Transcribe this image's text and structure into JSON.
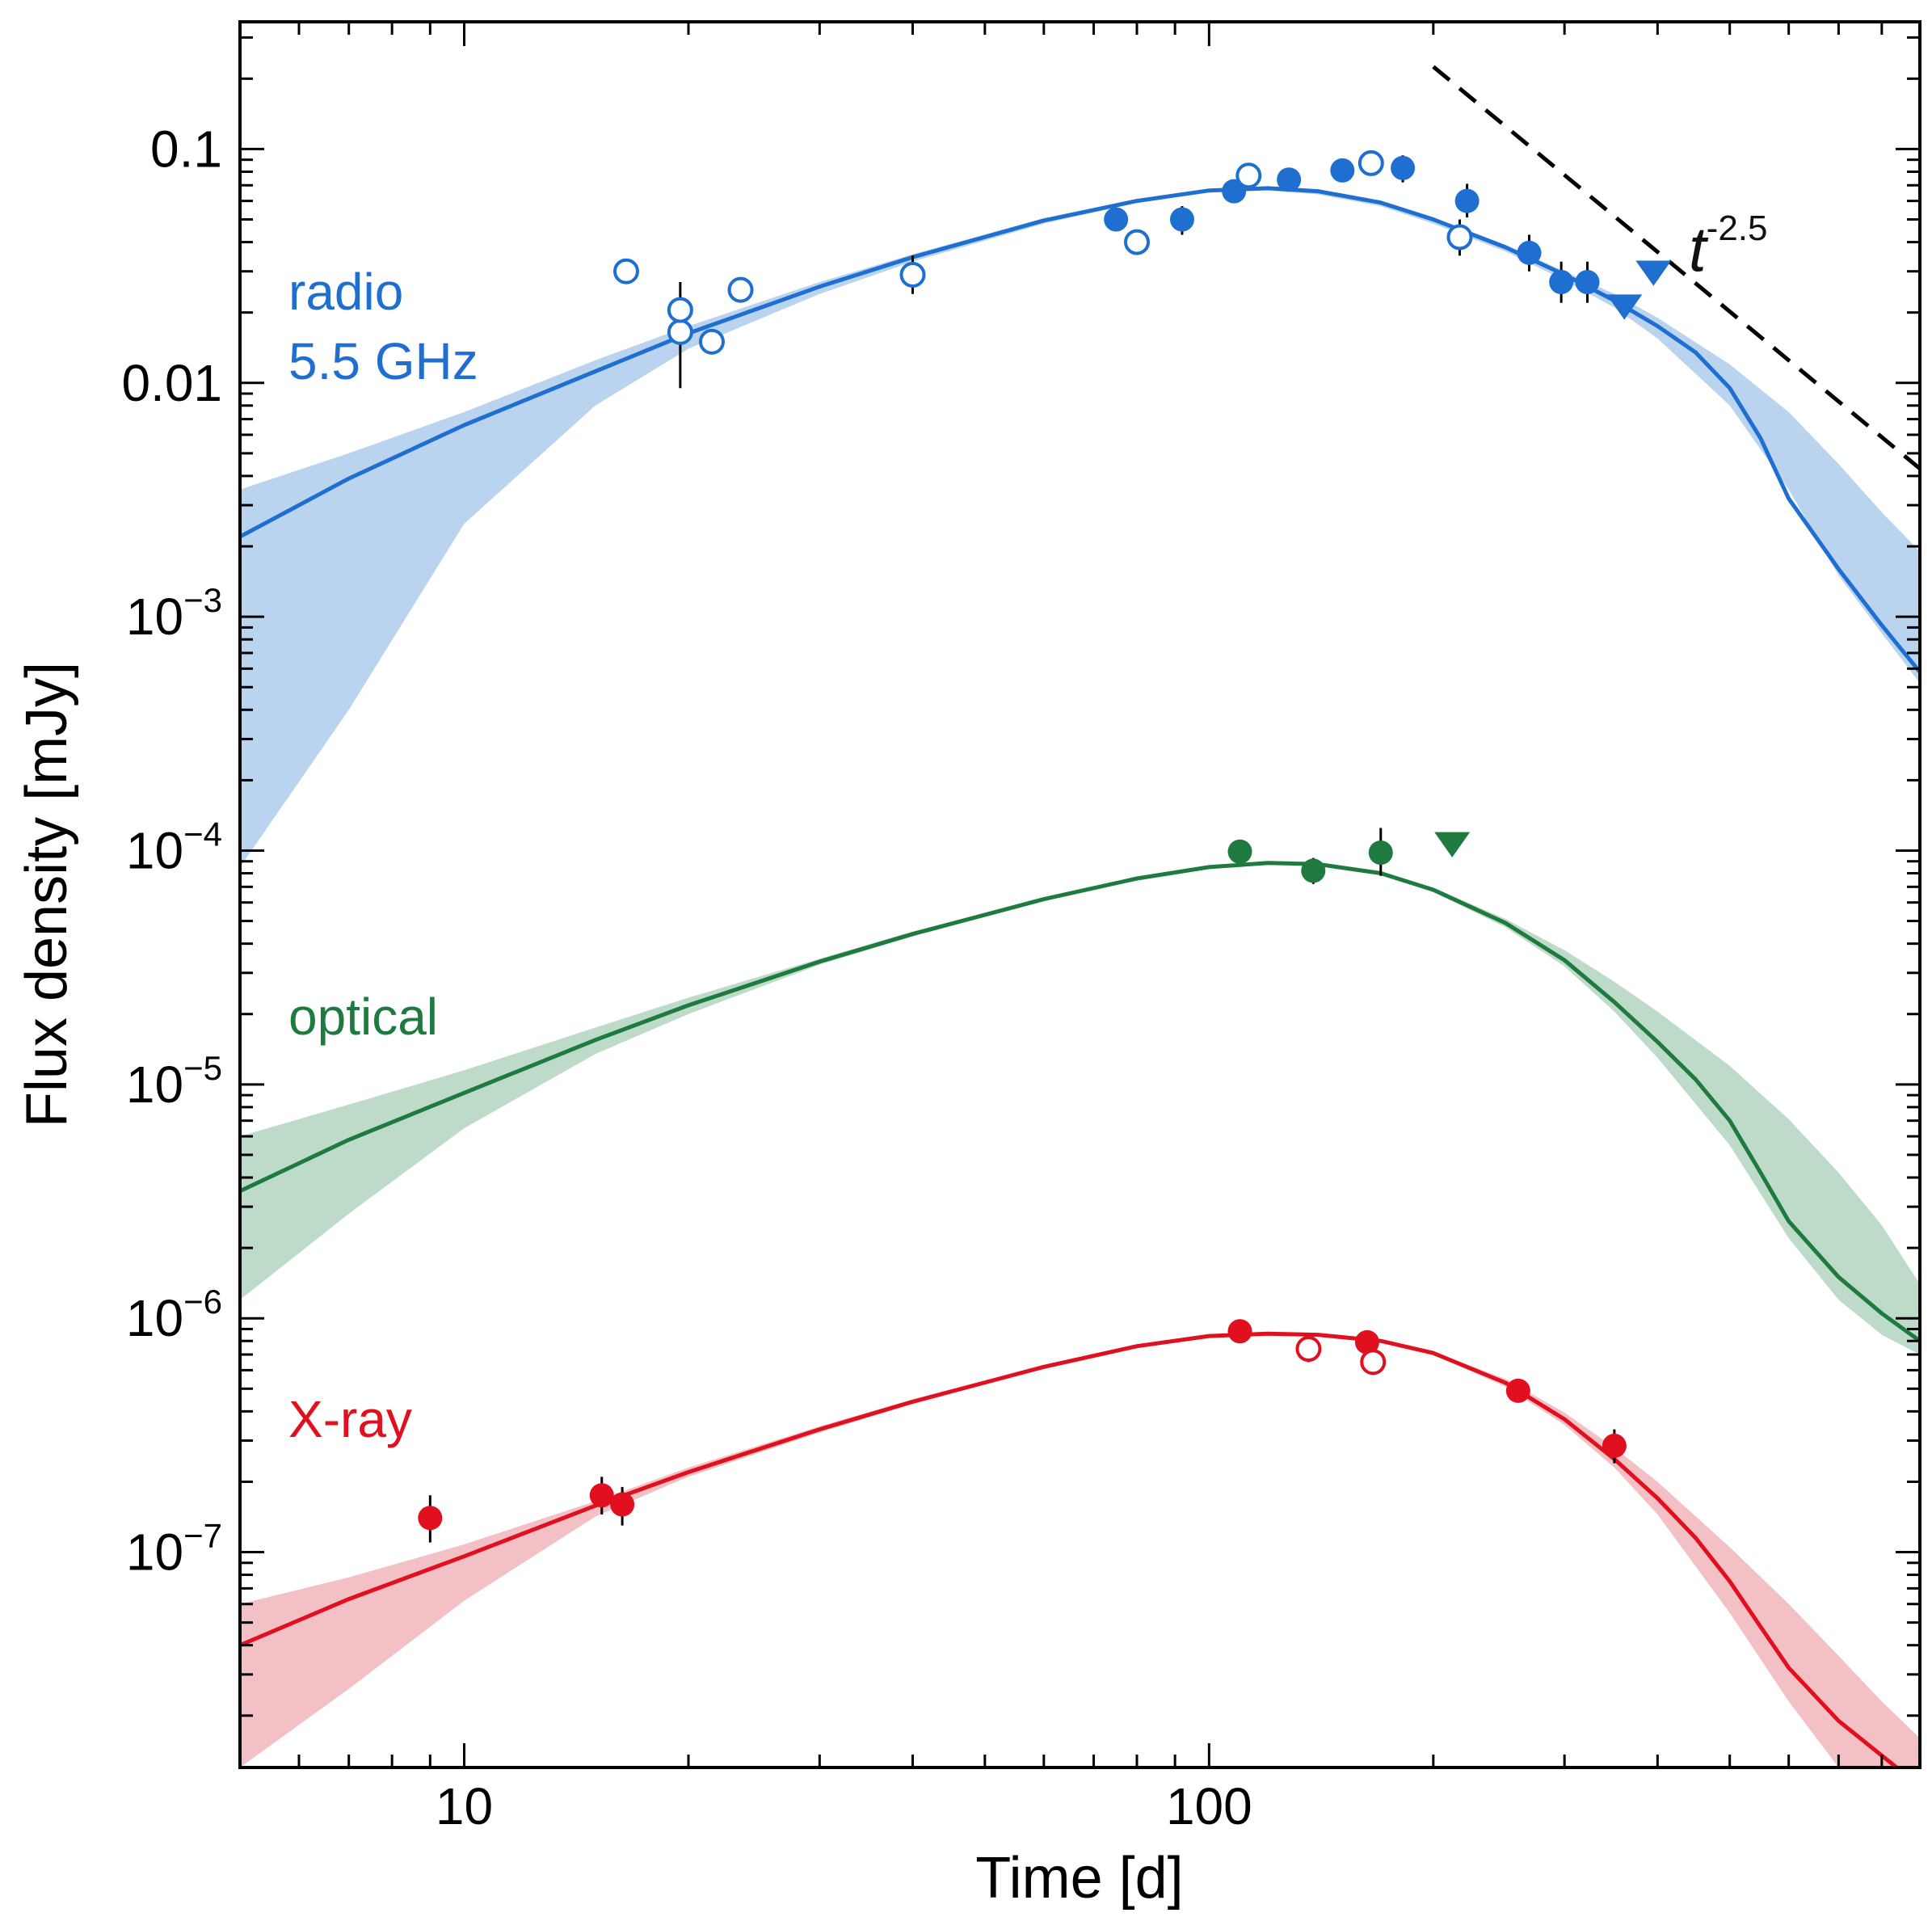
{
  "chart_data": {
    "type": "scatter",
    "title": "",
    "xlabel": "Time [d]",
    "ylabel": "Flux density [mJy]",
    "x_scale": "log",
    "y_scale": "log",
    "xlim": [
      5,
      900
    ],
    "ylim": [
      1.2e-08,
      0.35
    ],
    "grid": false,
    "x_ticks": [
      {
        "value": 10,
        "label": "10"
      },
      {
        "value": 100,
        "label": "100"
      }
    ],
    "y_ticks": [
      {
        "value": 0.1,
        "base": "0.1",
        "exp": ""
      },
      {
        "value": 0.01,
        "base": "0.01",
        "exp": ""
      },
      {
        "value": 0.001,
        "base": "10",
        "exp": "−3"
      },
      {
        "value": 0.0001,
        "base": "10",
        "exp": "−4"
      },
      {
        "value": 1e-05,
        "base": "10",
        "exp": "−5"
      },
      {
        "value": 1e-06,
        "base": "10",
        "exp": "−6"
      },
      {
        "value": 1e-07,
        "base": "10",
        "exp": "−7"
      }
    ],
    "powerlaw": {
      "base": "t",
      "exponent": "-2.5",
      "x": [
        200,
        900
      ],
      "y": [
        0.225,
        0.0043
      ]
    },
    "series": [
      {
        "name": "radio",
        "name_line2": "5.5 GHz",
        "color": "#1f6fd1",
        "band_color": "#bad3ef",
        "model": {
          "x": [
            5,
            7,
            10,
            15,
            20,
            30,
            40,
            60,
            80,
            100,
            120,
            140,
            170,
            200,
            250,
            300,
            350,
            400,
            450,
            500,
            550,
            600,
            700,
            800,
            900
          ],
          "y": [
            0.0022,
            0.0039,
            0.0066,
            0.0112,
            0.0163,
            0.0258,
            0.0345,
            0.0495,
            0.06,
            0.0665,
            0.068,
            0.066,
            0.059,
            0.05,
            0.038,
            0.029,
            0.0225,
            0.0175,
            0.0135,
            0.0095,
            0.0058,
            0.0032,
            0.0016,
            0.00092,
            0.00058
          ]
        },
        "band": {
          "x": [
            5,
            7,
            10,
            15,
            20,
            30,
            40,
            60,
            80,
            100,
            120,
            140,
            170,
            200,
            250,
            300,
            350,
            400,
            500,
            600,
            700,
            800,
            900
          ],
          "upper": [
            0.0035,
            0.005,
            0.0075,
            0.0125,
            0.0175,
            0.027,
            0.0355,
            0.0505,
            0.061,
            0.0675,
            0.069,
            0.067,
            0.06,
            0.051,
            0.039,
            0.03,
            0.024,
            0.019,
            0.012,
            0.0075,
            0.0045,
            0.0028,
            0.0019
          ],
          "lower": [
            8.5e-05,
            0.0004,
            0.0025,
            0.008,
            0.014,
            0.024,
            0.033,
            0.048,
            0.059,
            0.0655,
            0.0665,
            0.064,
            0.057,
            0.048,
            0.0365,
            0.0275,
            0.021,
            0.0155,
            0.008,
            0.0035,
            0.0015,
            0.00085,
            0.00052
          ]
        },
        "points": [
          {
            "x": 16.5,
            "y": 0.03,
            "filled": false
          },
          {
            "x": 19.5,
            "y": 0.0165,
            "filled": false,
            "err_lo": 0.0095,
            "err_hi": 0.027
          },
          {
            "x": 19.5,
            "y": 0.0205,
            "filled": false
          },
          {
            "x": 21.5,
            "y": 0.015,
            "filled": false
          },
          {
            "x": 23.5,
            "y": 0.025,
            "filled": false
          },
          {
            "x": 40,
            "y": 0.029,
            "filled": false,
            "err_lo": 0.024,
            "err_hi": 0.035
          },
          {
            "x": 75,
            "y": 0.05,
            "filled": true
          },
          {
            "x": 80,
            "y": 0.04,
            "filled": false
          },
          {
            "x": 92,
            "y": 0.05,
            "filled": true,
            "err_lo": 0.043,
            "err_hi": 0.057
          },
          {
            "x": 108,
            "y": 0.066,
            "filled": true
          },
          {
            "x": 113,
            "y": 0.077,
            "filled": false
          },
          {
            "x": 128,
            "y": 0.074,
            "filled": true
          },
          {
            "x": 151,
            "y": 0.081,
            "filled": true
          },
          {
            "x": 165,
            "y": 0.087,
            "filled": false
          },
          {
            "x": 182,
            "y": 0.083,
            "filled": true,
            "err_lo": 0.072,
            "err_hi": 0.094
          },
          {
            "x": 217,
            "y": 0.042,
            "filled": false,
            "err_lo": 0.035,
            "err_hi": 0.05
          },
          {
            "x": 222,
            "y": 0.06,
            "filled": true,
            "err_lo": 0.051,
            "err_hi": 0.071
          },
          {
            "x": 269,
            "y": 0.036,
            "filled": true,
            "err_lo": 0.03,
            "err_hi": 0.043
          },
          {
            "x": 297,
            "y": 0.027,
            "filled": true,
            "err_lo": 0.022,
            "err_hi": 0.033
          },
          {
            "x": 322,
            "y": 0.027,
            "filled": true,
            "err_lo": 0.022,
            "err_hi": 0.033
          }
        ],
        "upper_limits": [
          {
            "x": 361,
            "y": 0.0215
          },
          {
            "x": 395,
            "y": 0.03
          }
        ]
      },
      {
        "name": "optical",
        "color": "#1e7a3e",
        "band_color": "#bedac8",
        "model": {
          "x": [
            5,
            7,
            10,
            15,
            20,
            30,
            40,
            60,
            80,
            100,
            120,
            140,
            170,
            200,
            250,
            300,
            350,
            400,
            450,
            500,
            550,
            600,
            700,
            800,
            900
          ],
          "y": [
            3.5e-06,
            5.8e-06,
            9.2e-06,
            1.55e-05,
            2.18e-05,
            3.35e-05,
            4.4e-05,
            6.2e-05,
            7.6e-05,
            8.5e-05,
            8.85e-05,
            8.75e-05,
            8e-05,
            6.8e-05,
            4.9e-05,
            3.4e-05,
            2.25e-05,
            1.52e-05,
            1.05e-05,
            7e-06,
            4.2e-06,
            2.6e-06,
            1.5e-06,
            1.05e-06,
            8e-07
          ]
        },
        "band": {
          "x": [
            5,
            7,
            10,
            15,
            20,
            30,
            40,
            60,
            80,
            100,
            120,
            140,
            170,
            200,
            250,
            300,
            350,
            400,
            500,
            600,
            700,
            800,
            900
          ],
          "upper": [
            6e-06,
            8.2e-06,
            1.15e-05,
            1.75e-05,
            2.35e-05,
            3.45e-05,
            4.5e-05,
            6.3e-05,
            7.7e-05,
            8.6e-05,
            8.95e-05,
            8.85e-05,
            8.1e-05,
            6.95e-05,
            5.1e-05,
            3.75e-05,
            2.75e-05,
            2.05e-05,
            1.2e-05,
            7.1e-06,
            4.2e-06,
            2.5e-06,
            1.4e-06
          ],
          "lower": [
            1.2e-06,
            2.8e-06,
            6.5e-06,
            1.35e-05,
            2e-05,
            3.25e-05,
            4.3e-05,
            6.1e-05,
            7.5e-05,
            8.4e-05,
            8.75e-05,
            8.65e-05,
            7.9e-05,
            6.65e-05,
            4.7e-05,
            3.2e-05,
            2.05e-05,
            1.3e-05,
            5.5e-06,
            2.2e-06,
            1.2e-06,
            8.5e-07,
            7e-07
          ]
        },
        "points": [
          {
            "x": 110,
            "y": 9.9e-05,
            "filled": true
          },
          {
            "x": 138,
            "y": 8.2e-05,
            "filled": true,
            "err_lo": 7.2e-05,
            "err_hi": 9.3e-05
          },
          {
            "x": 170,
            "y": 9.8e-05,
            "filled": true,
            "err_lo": 7.8e-05,
            "err_hi": 0.000125
          }
        ],
        "upper_limits": [
          {
            "x": 212,
            "y": 0.000108
          }
        ]
      },
      {
        "name": "X-ray",
        "color": "#e0101f",
        "band_color": "#f2c0c5",
        "model": {
          "x": [
            5,
            7,
            10,
            15,
            20,
            30,
            40,
            60,
            80,
            100,
            120,
            140,
            170,
            200,
            250,
            300,
            350,
            400,
            450,
            500,
            550,
            600,
            700,
            800,
            900
          ],
          "y": [
            4e-08,
            6.3e-08,
            9.6e-08,
            1.58e-07,
            2.2e-07,
            3.35e-07,
            4.4e-07,
            6.2e-07,
            7.6e-07,
            8.4e-07,
            8.6e-07,
            8.5e-07,
            8e-07,
            7.1e-07,
            5.3e-07,
            3.7e-07,
            2.5e-07,
            1.7e-07,
            1.15e-07,
            7.5e-08,
            4.8e-08,
            3.2e-08,
            1.9e-08,
            1.35e-08,
            1e-08
          ]
        },
        "band": {
          "x": [
            5,
            7,
            10,
            15,
            20,
            30,
            40,
            60,
            80,
            100,
            120,
            140,
            170,
            200,
            250,
            300,
            350,
            400,
            500,
            600,
            700,
            800,
            900
          ],
          "upper": [
            6e-08,
            7.8e-08,
            1.08e-07,
            1.65e-07,
            2.3e-07,
            3.45e-07,
            4.5e-07,
            6.3e-07,
            7.7e-07,
            8.5e-07,
            8.7e-07,
            8.6e-07,
            8.1e-07,
            7.2e-07,
            5.5e-07,
            3.95e-07,
            2.8e-07,
            2e-07,
            1.05e-07,
            6e-08,
            3.6e-08,
            2.3e-08,
            1.6e-08
          ],
          "lower": [
            1.2e-08,
            2.6e-08,
            6.2e-08,
            1.42e-07,
            2.1e-07,
            3.25e-07,
            4.3e-07,
            6.1e-07,
            7.5e-07,
            8.3e-07,
            8.5e-07,
            8.4e-07,
            7.9e-07,
            7e-07,
            5.1e-07,
            3.5e-07,
            2.3e-07,
            1.45e-07,
            5.5e-08,
            2.3e-08,
            1.2e-08,
            1.2e-08,
            1.2e-08
          ]
        },
        "points": [
          {
            "x": 9.0,
            "y": 1.4e-07,
            "filled": true,
            "err_lo": 1.1e-07,
            "err_hi": 1.75e-07
          },
          {
            "x": 15.3,
            "y": 1.75e-07,
            "filled": true,
            "err_lo": 1.45e-07,
            "err_hi": 2.1e-07
          },
          {
            "x": 16.3,
            "y": 1.6e-07,
            "filled": true,
            "err_lo": 1.3e-07,
            "err_hi": 1.9e-07
          },
          {
            "x": 110,
            "y": 8.8e-07,
            "filled": true
          },
          {
            "x": 136,
            "y": 7.4e-07,
            "filled": false,
            "err_lo": 6.5e-07,
            "err_hi": 8.4e-07
          },
          {
            "x": 163,
            "y": 7.9e-07,
            "filled": true,
            "err_lo": 7.1e-07,
            "err_hi": 8.8e-07
          },
          {
            "x": 166,
            "y": 6.5e-07,
            "filled": false
          },
          {
            "x": 260,
            "y": 4.9e-07,
            "filled": true
          },
          {
            "x": 350,
            "y": 2.85e-07,
            "filled": true,
            "err_lo": 2.4e-07,
            "err_hi": 3.35e-07
          }
        ],
        "upper_limits": []
      }
    ]
  }
}
